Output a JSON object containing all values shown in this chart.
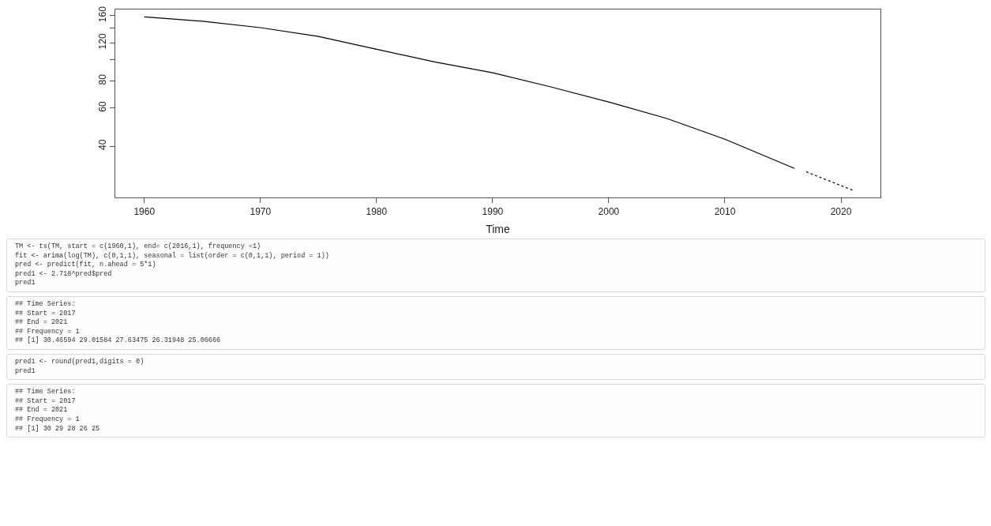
{
  "chart_data": {
    "type": "line",
    "xlabel": "Time",
    "xlim": [
      1957.5,
      2023.4
    ],
    "xticks": [
      1960,
      1970,
      1980,
      1990,
      2000,
      2010,
      2020
    ],
    "ylim": [
      23.2,
      171
    ],
    "log": "y",
    "yticks": [
      40,
      60,
      80,
      {
        "value": 100,
        "label": null
      },
      120,
      {
        "value": 140,
        "label": null
      },
      160
    ],
    "grid": false,
    "marker": "none",
    "series": [
      {
        "color": "#000000",
        "line_style": "solid",
        "x": [
          1960,
          1965,
          1970,
          1975,
          1980,
          1985,
          1990,
          1995,
          2000,
          2005,
          2010,
          2016
        ],
        "values": [
          158,
          151,
          141,
          128.5,
          112,
          98,
          87.3,
          75.1,
          64,
          53.7,
          43.1,
          31.6
        ]
      },
      {
        "color": "#000000",
        "line_style": "dotted",
        "x": [
          2017,
          2018,
          2019,
          2020,
          2021
        ],
        "values": [
          30.46594,
          29.01584,
          27.63475,
          26.31948,
          25.06666
        ]
      }
    ],
    "annotations": [
      "TM <- ts(TM, start = c(1960,1), end= c(2016,1), frequency =1)\nfit <- arima(log(TM), c(0,1,1), seasonal = list(order = c(0,1,1), period = 1))\npred <- predict(fit, n.ahead = 5*1)\npred1 <- 2.718^pred$pred\npred1",
      "## Time Series:\n## Start = 2017\n## End = 2021\n## Frequency = 1\n## [1] 30.46594 29.01584 27.63475 26.31948 25.06666",
      "pred1 <- round(pred1,digits = 0)\npred1",
      "## Time Series:\n## Start = 2017\n## End = 2021\n## Frequency = 1\n## [1] 30 29 28 26 25"
    ]
  }
}
